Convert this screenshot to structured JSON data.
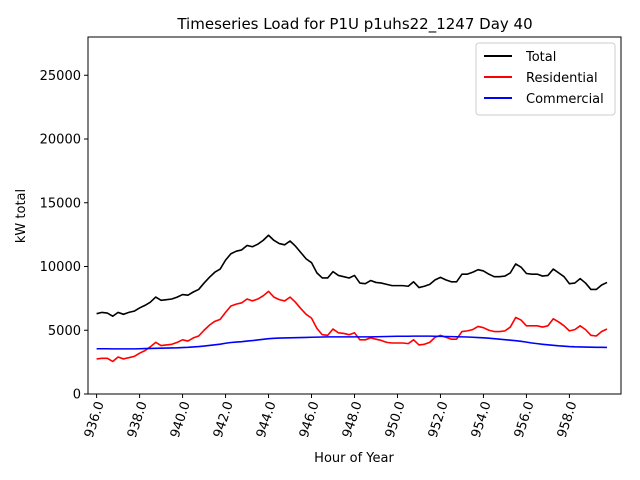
{
  "chart_data": {
    "type": "line",
    "title": "Timeseries Load for P1U p1uhs22_1247  Day 40",
    "xlabel": "Hour of Year",
    "ylabel": "kW total",
    "xlim": [
      935.6,
      960.4
    ],
    "ylim": [
      0,
      28000
    ],
    "xticks": [
      936,
      938,
      940,
      942,
      944,
      946,
      948,
      950,
      952,
      954,
      956,
      958
    ],
    "xtick_labels": [
      "936.0",
      "938.0",
      "940.0",
      "942.0",
      "944.0",
      "946.0",
      "948.0",
      "950.0",
      "952.0",
      "954.0",
      "956.0",
      "958.0"
    ],
    "yticks": [
      0,
      5000,
      10000,
      15000,
      20000,
      25000
    ],
    "ytick_labels": [
      "0",
      "5000",
      "10000",
      "15000",
      "20000",
      "25000"
    ],
    "x_start": 936.0,
    "x_step": 0.25,
    "legend_position": "top-right",
    "series": [
      {
        "name": "Total",
        "color": "#000000",
        "values": [
          6300,
          6400,
          6350,
          6100,
          6400,
          6250,
          6400,
          6500,
          6750,
          6950,
          7200,
          7600,
          7350,
          7400,
          7450,
          7600,
          7800,
          7750,
          8000,
          8200,
          8700,
          9150,
          9550,
          9800,
          10500,
          11000,
          11200,
          11300,
          11650,
          11550,
          11750,
          12050,
          12450,
          12050,
          11800,
          11700,
          12000,
          11600,
          11100,
          10600,
          10300,
          9500,
          9100,
          9100,
          9600,
          9300,
          9200,
          9100,
          9300,
          8700,
          8650,
          8900,
          8750,
          8700,
          8600,
          8500,
          8500,
          8500,
          8450,
          8800,
          8350,
          8450,
          8600,
          8950,
          9150,
          8950,
          8800,
          8800,
          9400,
          9400,
          9550,
          9750,
          9650,
          9400,
          9200,
          9200,
          9250,
          9500,
          10200,
          9950,
          9450,
          9400,
          9400,
          9250,
          9300,
          9800,
          9500,
          9200,
          8650,
          8700,
          9050,
          8700,
          8200,
          8200,
          8550,
          8750
        ]
      },
      {
        "name": "Residential",
        "color": "#ff0000",
        "values": [
          2750,
          2800,
          2800,
          2550,
          2900,
          2750,
          2850,
          2950,
          3200,
          3400,
          3700,
          4050,
          3800,
          3850,
          3900,
          4050,
          4250,
          4150,
          4400,
          4550,
          5000,
          5400,
          5700,
          5850,
          6400,
          6900,
          7050,
          7150,
          7450,
          7300,
          7450,
          7700,
          8050,
          7600,
          7400,
          7300,
          7600,
          7200,
          6700,
          6250,
          5950,
          5150,
          4650,
          4600,
          5100,
          4800,
          4750,
          4650,
          4800,
          4250,
          4250,
          4400,
          4300,
          4200,
          4050,
          4000,
          4000,
          4000,
          3950,
          4250,
          3850,
          3900,
          4050,
          4450,
          4600,
          4450,
          4300,
          4300,
          4900,
          4950,
          5050,
          5300,
          5200,
          5000,
          4900,
          4900,
          4950,
          5250,
          6000,
          5800,
          5350,
          5350,
          5350,
          5250,
          5350,
          5900,
          5650,
          5350,
          4950,
          5050,
          5350,
          5050,
          4600,
          4550,
          4900,
          5100
        ]
      },
      {
        "name": "Commercial",
        "color": "#0000ff",
        "values": [
          3550,
          3550,
          3550,
          3540,
          3540,
          3540,
          3540,
          3540,
          3550,
          3560,
          3570,
          3580,
          3590,
          3600,
          3610,
          3620,
          3640,
          3660,
          3690,
          3720,
          3760,
          3810,
          3860,
          3910,
          3980,
          4040,
          4070,
          4100,
          4150,
          4190,
          4240,
          4290,
          4340,
          4370,
          4390,
          4400,
          4410,
          4420,
          4430,
          4440,
          4450,
          4460,
          4470,
          4480,
          4480,
          4480,
          4480,
          4480,
          4480,
          4480,
          4480,
          4480,
          4490,
          4500,
          4510,
          4520,
          4530,
          4530,
          4530,
          4540,
          4540,
          4540,
          4540,
          4530,
          4520,
          4510,
          4500,
          4490,
          4480,
          4470,
          4450,
          4430,
          4410,
          4380,
          4340,
          4300,
          4260,
          4220,
          4180,
          4130,
          4070,
          4000,
          3950,
          3900,
          3860,
          3820,
          3780,
          3750,
          3720,
          3700,
          3690,
          3680,
          3670,
          3660,
          3660,
          3650
        ]
      }
    ]
  }
}
